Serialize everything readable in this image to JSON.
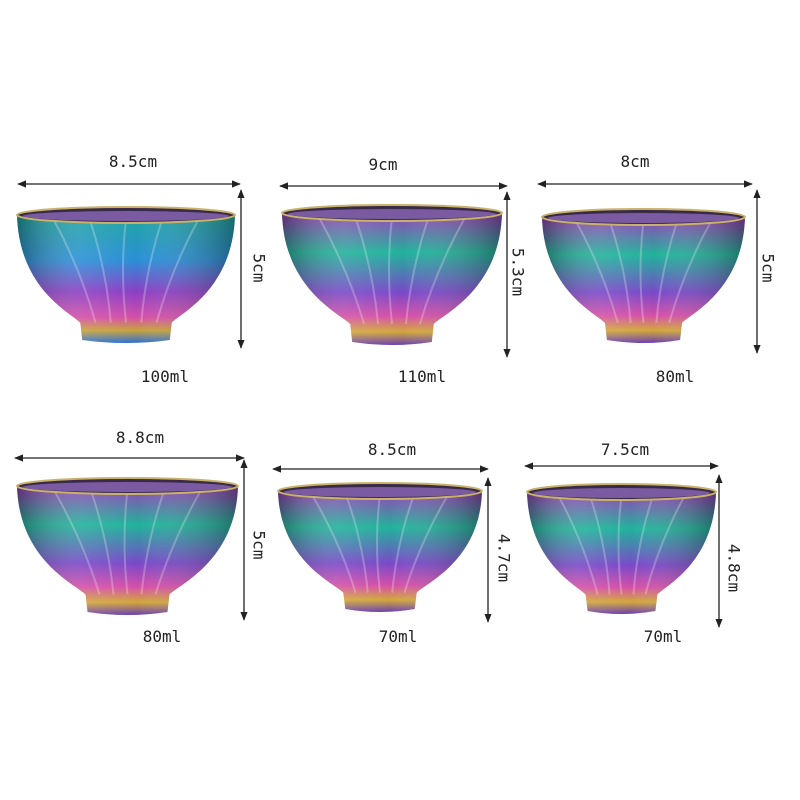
{
  "cups": [
    {
      "width_label": "8.5cm",
      "height_label": "5cm",
      "capacity": "100ml"
    },
    {
      "width_label": "9cm",
      "height_label": "5.3cm",
      "capacity": "110ml"
    },
    {
      "width_label": "8cm",
      "height_label": "5cm",
      "capacity": "80ml"
    },
    {
      "width_label": "8.8cm",
      "height_label": "5cm",
      "capacity": "80ml"
    },
    {
      "width_label": "8.5cm",
      "height_label": "4.7cm",
      "capacity": "70ml"
    },
    {
      "width_label": "7.5cm",
      "height_label": "4.8cm",
      "capacity": "70ml"
    }
  ],
  "colors": {
    "background": "#ffffff",
    "arrow": "#222222",
    "iridescent": [
      "#2a8fd6",
      "#1fb39a",
      "#8b3fc4",
      "#d44fa8",
      "#c9a23a"
    ]
  }
}
